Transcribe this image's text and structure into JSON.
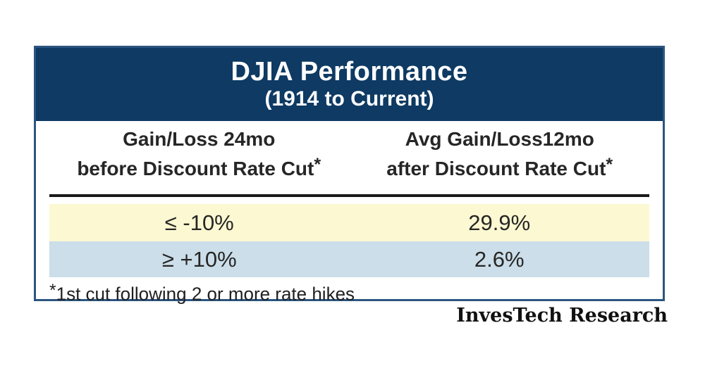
{
  "chart_data": {
    "type": "table",
    "title": "DJIA Performance",
    "subtitle": "(1914 to Current)",
    "columns": [
      "Gain/Loss 24mo before Discount Rate Cut*",
      "Avg Gain/Loss12mo after Discount Rate Cut*"
    ],
    "rows": [
      [
        "≤ -10%",
        "29.9%"
      ],
      [
        "≥ +10%",
        "2.6%"
      ]
    ],
    "values_pct": [
      29.9,
      2.6
    ],
    "footnote": "*1st cut following 2 or more rate hikes",
    "source": "InvesTech Research",
    "grid": false,
    "legend_position": "none"
  },
  "table": {
    "title": "DJIA Performance",
    "subtitle": "(1914 to Current)",
    "col1_line1": "Gain/Loss 24mo",
    "col1_line2": "before Discount Rate Cut",
    "col2_line1": "Avg Gain/Loss12mo",
    "col2_line2": "after Discount Rate Cut",
    "asterisk": "*",
    "rows": [
      {
        "condition": "≤ -10%",
        "value": "29.9%"
      },
      {
        "condition": "≥ +10%",
        "value": "2.6%"
      }
    ],
    "footnote_text": "1st cut following 2 or more rate hikes"
  },
  "branding": {
    "source_label": "InvesTech Research"
  },
  "colors": {
    "header_bg": "#0E3A63",
    "border": "#2B5580",
    "row1_bg": "#FCF8D2",
    "row2_bg": "#CBDEE9",
    "rule": "#1A1A1A",
    "text_dark": "#262626"
  }
}
